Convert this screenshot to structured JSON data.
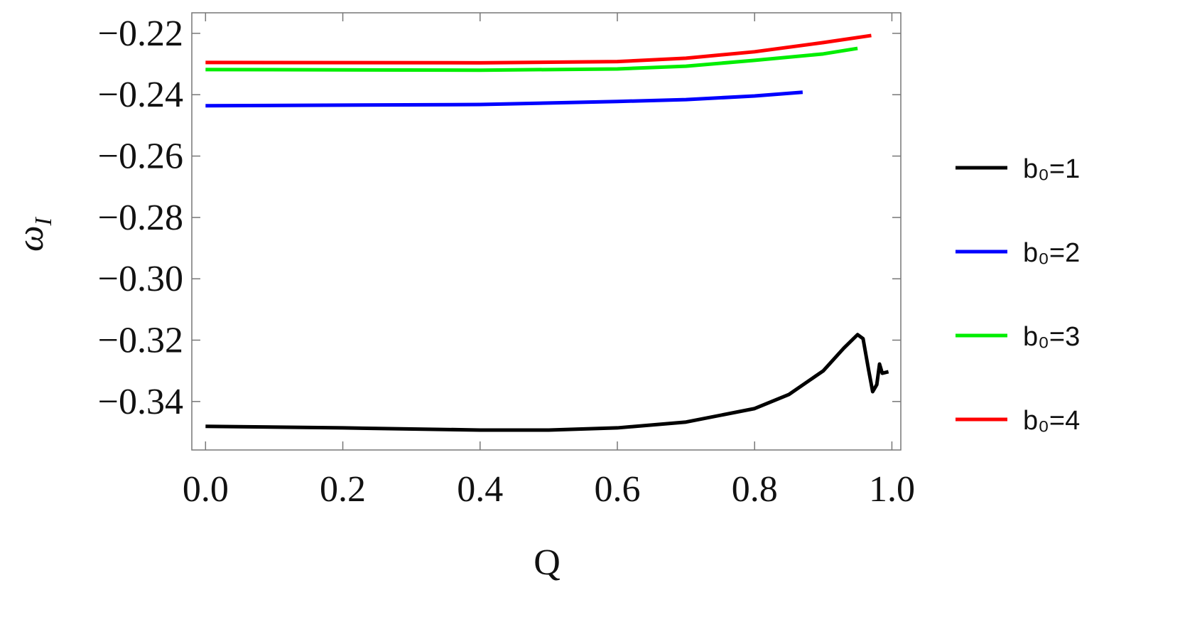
{
  "chart_data": {
    "type": "line",
    "x_label": "Q",
    "y_label": "ω",
    "y_label_subscript": "I",
    "xlim": [
      -0.02,
      1.013
    ],
    "ylim": [
      -0.3558,
      -0.2133
    ],
    "xticks": [
      {
        "value": 0,
        "label": "0.0"
      },
      0.2,
      0.4,
      0.6,
      0.8,
      {
        "value": 1,
        "label": "1.0"
      }
    ],
    "yticks": [
      {
        "value": -0.22,
        "label": "−0.22"
      },
      {
        "value": -0.24,
        "label": "−0.24"
      },
      {
        "value": -0.26,
        "label": "−0.26"
      },
      {
        "value": -0.28,
        "label": "−0.28"
      },
      {
        "value": -0.3,
        "label": "−0.30"
      },
      {
        "value": -0.32,
        "label": "−0.32"
      },
      {
        "value": -0.34,
        "label": "−0.34"
      }
    ],
    "grid": false,
    "legend": "right",
    "series": [
      {
        "name": "b₀=1",
        "color": "#000000",
        "x": [
          0,
          0.2,
          0.4,
          0.5,
          0.6,
          0.7,
          0.8,
          0.85,
          0.9,
          0.93,
          0.95,
          0.958,
          0.966,
          0.972,
          0.978,
          0.982,
          0.986,
          0.995
        ],
        "values": [
          -0.3481,
          -0.3486,
          -0.3493,
          -0.3493,
          -0.3486,
          -0.3467,
          -0.3423,
          -0.3377,
          -0.33,
          -0.3226,
          -0.3182,
          -0.3195,
          -0.3296,
          -0.3368,
          -0.3345,
          -0.3278,
          -0.3308,
          -0.3303
        ]
      },
      {
        "name": "b₀=2",
        "color": "#0000ff",
        "x": [
          0,
          0.4,
          0.6,
          0.7,
          0.8,
          0.87
        ],
        "values": [
          -0.2436,
          -0.2432,
          -0.2422,
          -0.2416,
          -0.2404,
          -0.2392
        ]
      },
      {
        "name": "b₀=3",
        "color": "#00ee00",
        "x": [
          0,
          0.4,
          0.6,
          0.7,
          0.8,
          0.9,
          0.95
        ],
        "values": [
          -0.2318,
          -0.232,
          -0.2316,
          -0.2307,
          -0.2288,
          -0.2267,
          -0.2249
        ]
      },
      {
        "name": "b₀=4",
        "color": "#ff0000",
        "x": [
          0,
          0.4,
          0.6,
          0.7,
          0.8,
          0.9,
          0.97
        ],
        "values": [
          -0.2295,
          -0.2296,
          -0.2292,
          -0.2281,
          -0.226,
          -0.223,
          -0.2207
        ]
      }
    ]
  }
}
